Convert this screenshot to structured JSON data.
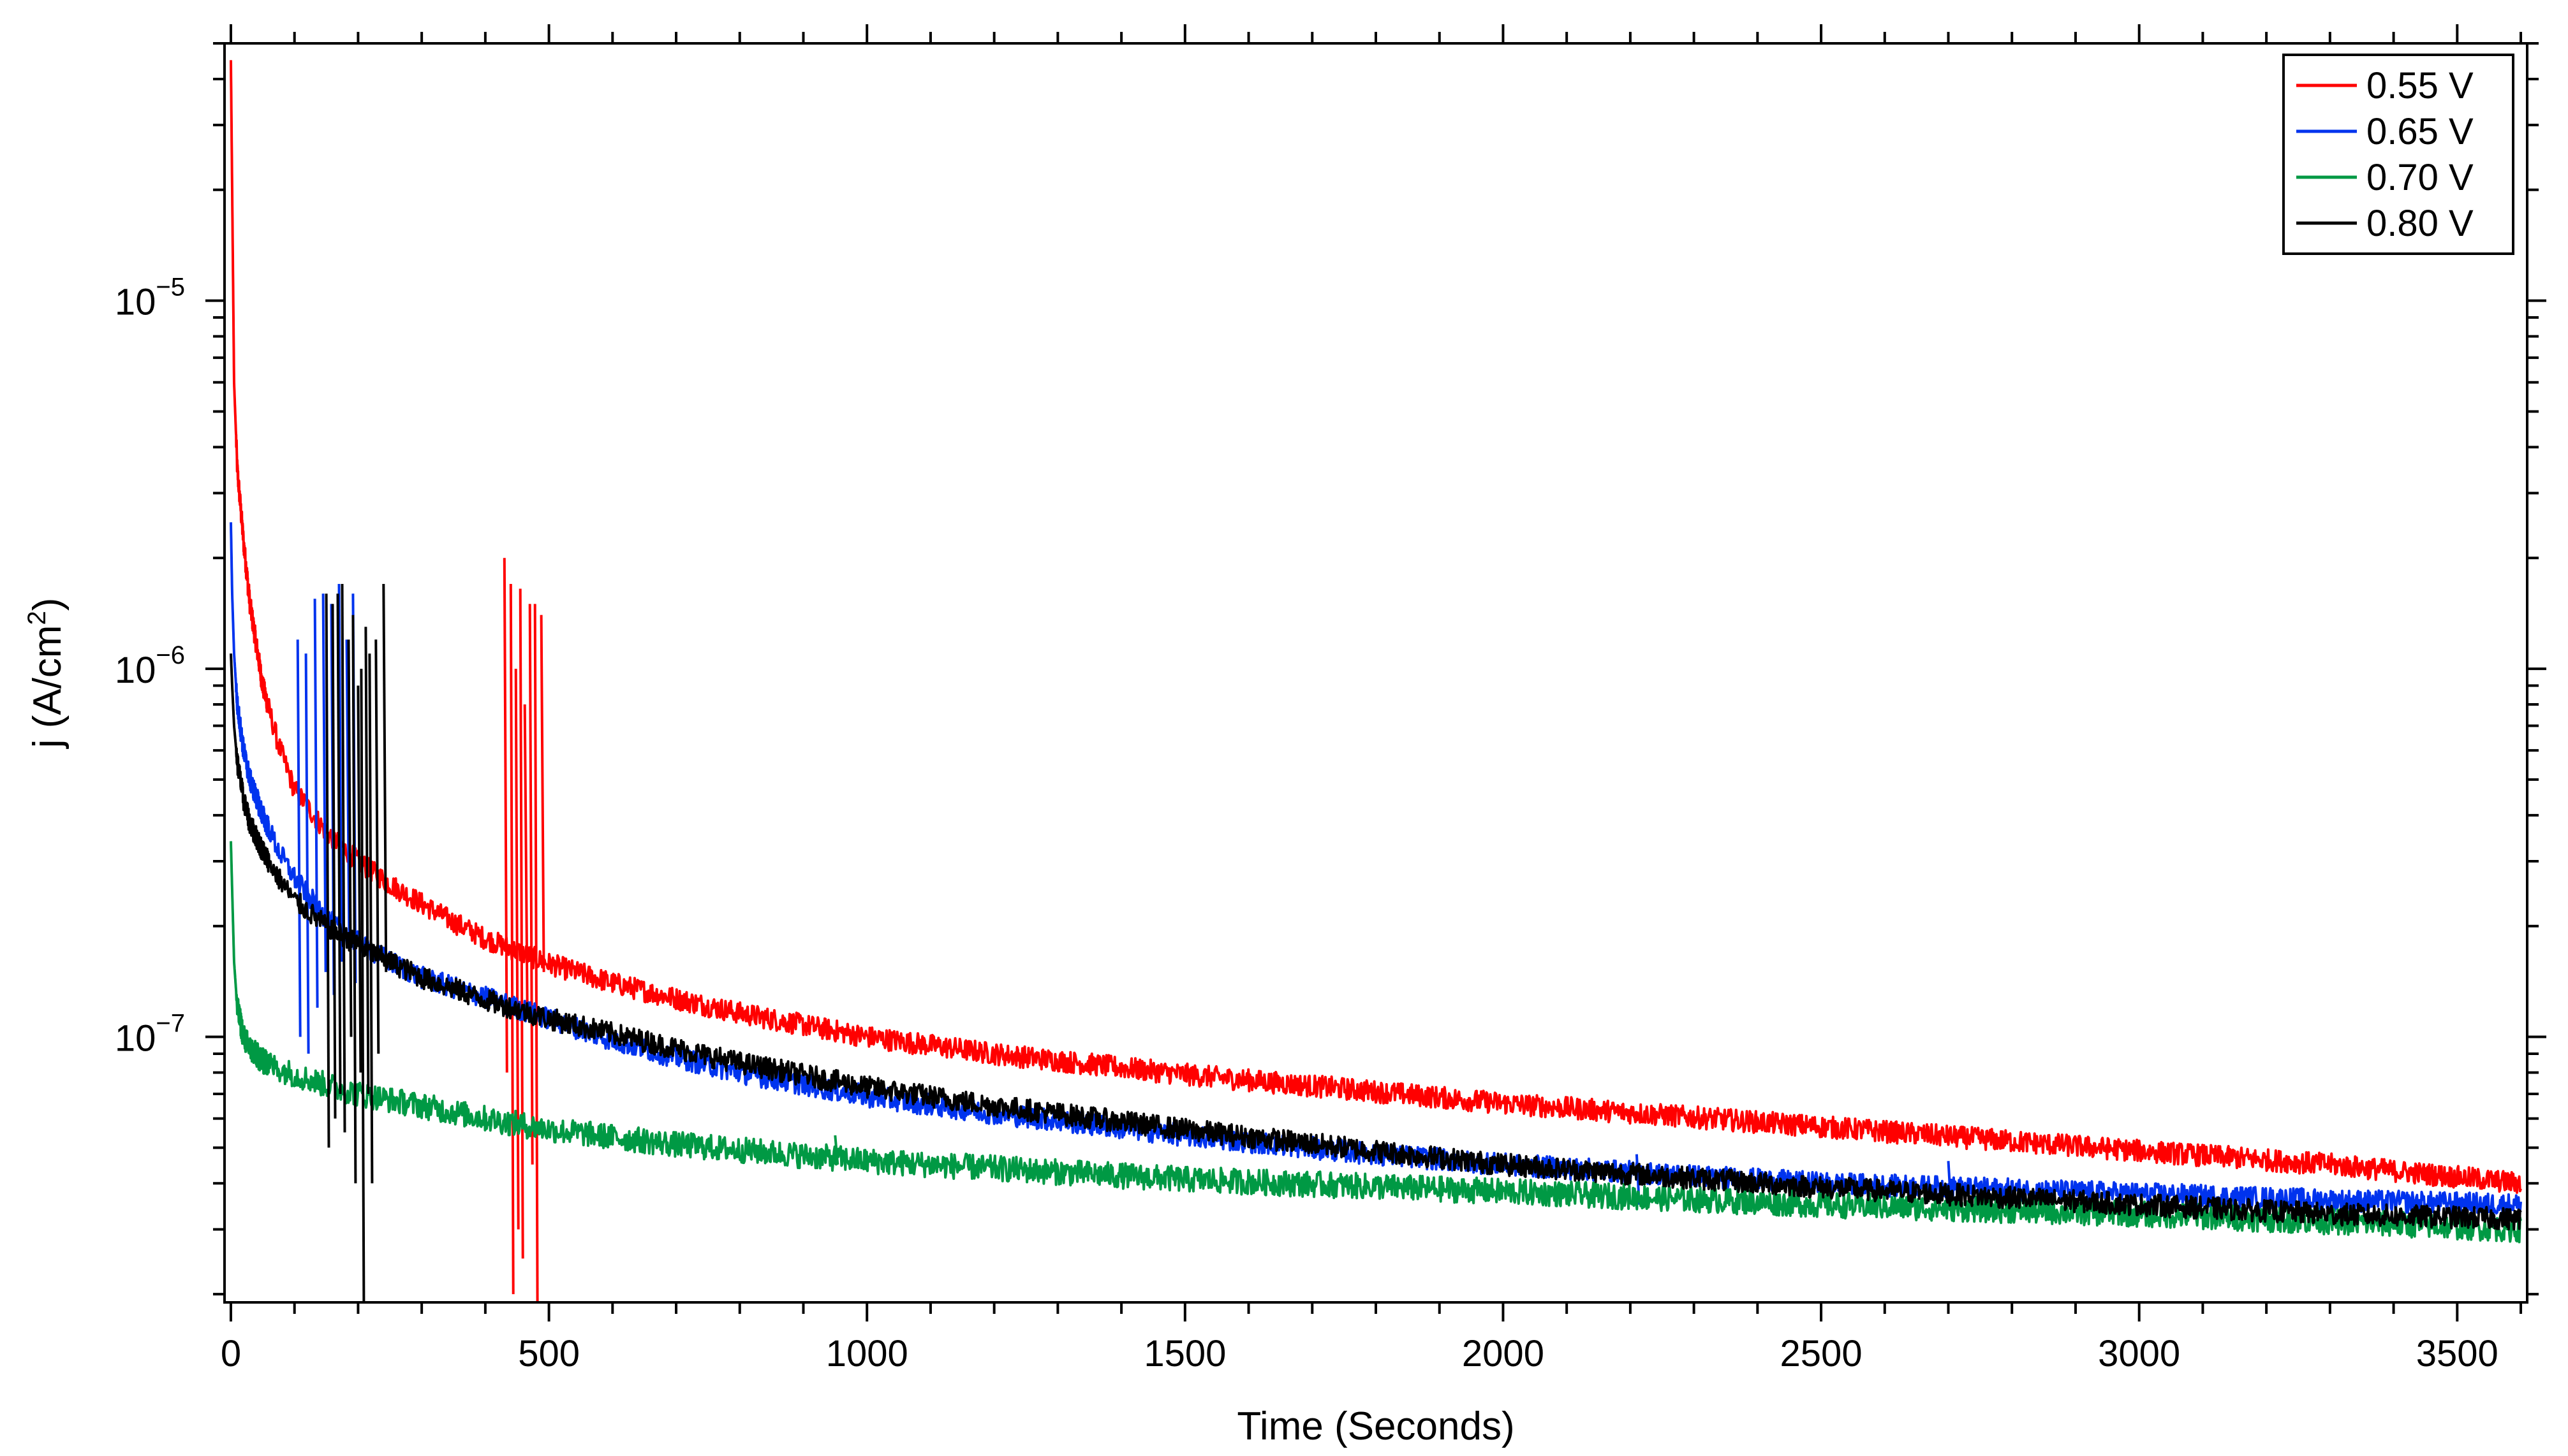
{
  "chart_data": {
    "type": "line",
    "title": "",
    "xlabel": "Time (Seconds)",
    "ylabel": "j (A/cm²)",
    "ylabel_base": "j (A/cm",
    "ylabel_exp": "2",
    "ylabel_tail": ")",
    "xlim": [
      -10,
      3610
    ],
    "ylim": [
      1.9e-08,
      5e-05
    ],
    "y_scale": "log",
    "x_ticks": [
      0,
      500,
      1000,
      1500,
      2000,
      2500,
      3000,
      3500
    ],
    "x_tick_labels": [
      "0",
      "500",
      "1000",
      "1500",
      "2000",
      "2500",
      "3000",
      "3500"
    ],
    "y_ticks": [
      1e-07,
      1e-06,
      1e-05
    ],
    "y_tick_labels": [
      {
        "base": "10",
        "exp": "−7"
      },
      {
        "base": "10",
        "exp": "−6"
      },
      {
        "base": "10",
        "exp": "−5"
      }
    ],
    "grid": false,
    "legend_position": "top-right",
    "series": [
      {
        "name": "0.55 V",
        "color": "#ff0000",
        "x": [
          0,
          2,
          5,
          10,
          20,
          30,
          50,
          75,
          100,
          150,
          200,
          250,
          300,
          350,
          400,
          500,
          600,
          700,
          800,
          1000,
          1200,
          1500,
          1800,
          2000,
          2500,
          3000,
          3300,
          3600
        ],
        "y": [
          4.5e-05,
          2e-05,
          6e-06,
          3.5e-06,
          2.2e-06,
          1.5e-06,
          9e-07,
          6.2e-07,
          4.7e-07,
          3.6e-07,
          3e-07,
          2.6e-07,
          2.3e-07,
          2.05e-07,
          1.85e-07,
          1.58e-07,
          1.4e-07,
          1.27e-07,
          1.16e-07,
          1e-07,
          9e-08,
          7.9e-08,
          7.1e-08,
          6.6e-08,
          5.7e-08,
          4.9e-08,
          4.5e-08,
          4e-08
        ],
        "noise": 0.03,
        "spikes": [
          {
            "x": 430,
            "values": [
              2e-06,
              8e-08
            ]
          },
          {
            "x": 440,
            "values": [
              1.7e-06,
              2e-08
            ]
          },
          {
            "x": 448,
            "values": [
              1e-06,
              3e-08
            ]
          },
          {
            "x": 455,
            "values": [
              1.65e-06,
              2.5e-08
            ]
          },
          {
            "x": 462,
            "values": [
              8e-07,
              1.2e-07
            ]
          },
          {
            "x": 470,
            "values": [
              1.5e-06,
              4.5e-08
            ]
          },
          {
            "x": 478,
            "values": [
              1.5e-06,
              1.9e-08
            ]
          },
          {
            "x": 488,
            "values": [
              1.4e-06,
              1.5e-07
            ]
          }
        ]
      },
      {
        "name": "0.65 V",
        "color": "#0033ee",
        "x": [
          0,
          2,
          5,
          10,
          20,
          30,
          50,
          75,
          100,
          150,
          200,
          250,
          300,
          400,
          500,
          600,
          700,
          800,
          1000,
          1200,
          1500,
          1800,
          2000,
          2500,
          3000,
          3300,
          3600
        ],
        "y": [
          2.5e-06,
          1.6e-06,
          1.1e-06,
          8e-07,
          6e-07,
          5e-07,
          4e-07,
          3.2e-07,
          2.7e-07,
          2.1e-07,
          1.8e-07,
          1.6e-07,
          1.45e-07,
          1.28e-07,
          1.12e-07,
          9.8e-08,
          8.8e-08,
          8e-08,
          6.9e-08,
          6.2e-08,
          5.4e-08,
          4.8e-08,
          4.5e-08,
          4e-08,
          3.75e-08,
          3.6e-08,
          3.5e-08
        ],
        "noise": 0.03,
        "spikes": [
          {
            "x": 105,
            "values": [
              1.2e-06,
              1e-07
            ]
          },
          {
            "x": 118,
            "values": [
              1.1e-06,
              9e-08
            ]
          },
          {
            "x": 132,
            "values": [
              1.55e-06,
              1.2e-07
            ]
          },
          {
            "x": 145,
            "values": [
              1.6e-06,
              1.5e-07
            ]
          },
          {
            "x": 158,
            "values": [
              1.5e-06,
              1.3e-07
            ]
          },
          {
            "x": 170,
            "values": [
              1.7e-06,
              1.6e-07
            ]
          },
          {
            "x": 182,
            "values": [
              1.2e-06,
              1.8e-07
            ]
          },
          {
            "x": 192,
            "values": [
              1.6e-06,
              1.4e-07
            ]
          },
          {
            "x": 2210,
            "values": [
              4.8e-08,
              3.5e-08
            ]
          },
          {
            "x": 2700,
            "values": [
              4.6e-08,
              3.5e-08
            ]
          }
        ]
      },
      {
        "name": "0.70 V",
        "color": "#009944",
        "x": [
          0,
          2,
          5,
          10,
          20,
          30,
          50,
          75,
          100,
          150,
          200,
          300,
          400,
          500,
          700,
          1000,
          1500,
          2000,
          2500,
          3000,
          3300,
          3600
        ],
        "y": [
          3.4e-07,
          2.5e-07,
          1.6e-07,
          1.2e-07,
          1e-07,
          9.3e-08,
          8.6e-08,
          8.2e-08,
          7.9e-08,
          7.4e-08,
          7e-08,
          6.5e-08,
          6e-08,
          5.6e-08,
          5.1e-08,
          4.6e-08,
          4.1e-08,
          3.8e-08,
          3.5e-08,
          3.3e-08,
          3.15e-08,
          3e-08
        ],
        "noise": 0.035,
        "spikes": [
          {
            "x": 950,
            "values": [
              5.4e-08,
              4.5e-08
            ]
          }
        ]
      },
      {
        "name": "0.80 V",
        "color": "#000000",
        "x": [
          0,
          2,
          5,
          10,
          20,
          30,
          50,
          75,
          100,
          150,
          200,
          250,
          300,
          400,
          500,
          600,
          700,
          800,
          1000,
          1200,
          1500,
          1800,
          2000,
          2500,
          3000,
          3300,
          3600
        ],
        "y": [
          1.1e-06,
          9e-07,
          7e-07,
          5.6e-07,
          4.4e-07,
          3.8e-07,
          3.2e-07,
          2.7e-07,
          2.35e-07,
          2e-07,
          1.78e-07,
          1.6e-07,
          1.45e-07,
          1.26e-07,
          1.12e-07,
          1.02e-07,
          9.3e-08,
          8.5e-08,
          7.3e-08,
          6.5e-08,
          5.6e-08,
          4.9e-08,
          4.5e-08,
          3.9e-08,
          3.5e-08,
          3.3e-08,
          3.2e-08
        ],
        "noise": 0.03,
        "spikes": [
          {
            "x": 150,
            "values": [
              1.6e-06,
              5e-08
            ]
          },
          {
            "x": 160,
            "values": [
              1.5e-06,
              6e-08
            ]
          },
          {
            "x": 168,
            "values": [
              1.6e-06,
              7e-08
            ]
          },
          {
            "x": 175,
            "values": [
              1.7e-06,
              5.5e-08
            ]
          },
          {
            "x": 185,
            "values": [
              1.2e-06,
              1e-07
            ]
          },
          {
            "x": 192,
            "values": [
              1.4e-06,
              4e-08
            ]
          },
          {
            "x": 200,
            "values": [
              9e-07,
              8e-08
            ]
          },
          {
            "x": 205,
            "values": [
              1e-06,
              1.9e-08
            ]
          },
          {
            "x": 212,
            "values": [
              1.3e-06,
              7e-08
            ]
          },
          {
            "x": 218,
            "values": [
              1.1e-06,
              4e-08
            ]
          },
          {
            "x": 228,
            "values": [
              1.2e-06,
              9e-08
            ]
          },
          {
            "x": 240,
            "values": [
              1.7e-06,
              1.5e-07
            ]
          }
        ]
      }
    ]
  }
}
